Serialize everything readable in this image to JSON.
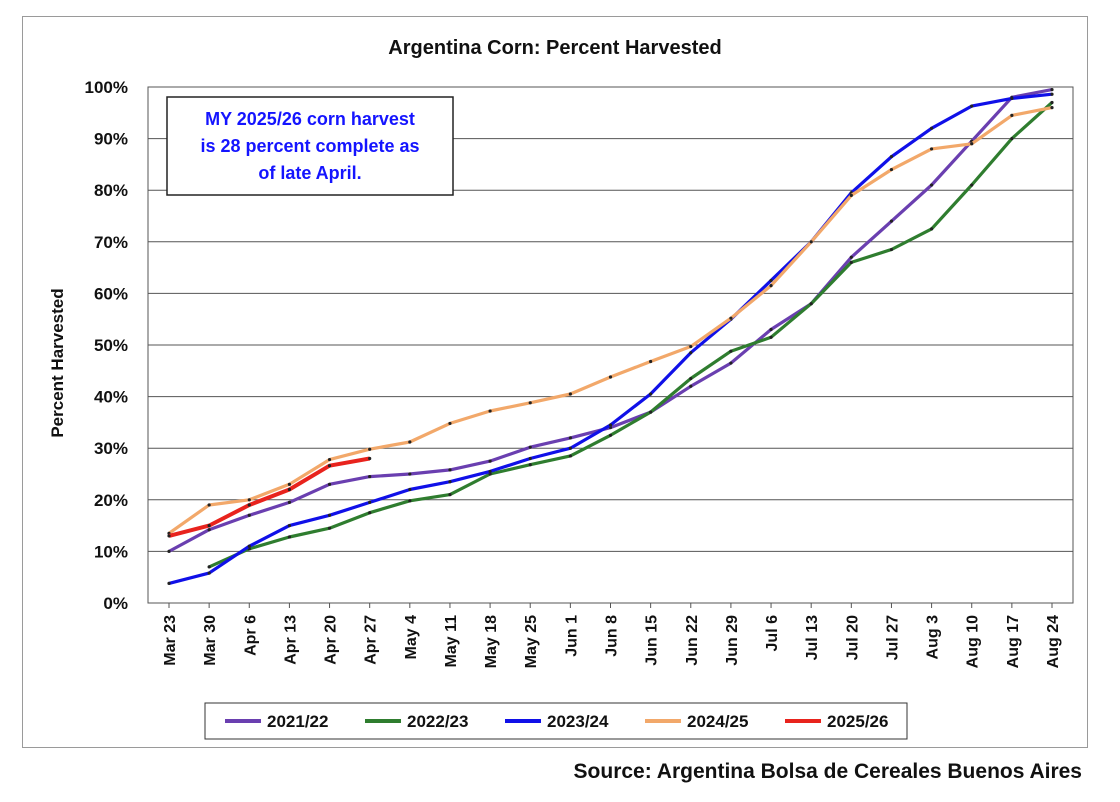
{
  "source_note": "Source: Argentina Bolsa de Cereales Buenos Aires",
  "chart_data": {
    "type": "line",
    "title": "Argentina Corn: Percent Harvested",
    "ylabel": "Percent Harvested",
    "xlabel": "",
    "ylim": [
      0,
      100
    ],
    "yticks": [
      "0%",
      "10%",
      "20%",
      "30%",
      "40%",
      "50%",
      "60%",
      "70%",
      "80%",
      "90%",
      "100%"
    ],
    "grid": true,
    "legend_position": "bottom",
    "annotation": {
      "lines": [
        "MY 2025/26 corn harvest",
        "is 28 percent complete as",
        "of late April."
      ],
      "color": "#1414ff"
    },
    "categories": [
      "Mar 23",
      "Mar 30",
      "Apr 6",
      "Apr 13",
      "Apr 20",
      "Apr 27",
      "May 4",
      "May 11",
      "May 18",
      "May 25",
      "Jun 1",
      "Jun 8",
      "Jun 15",
      "Jun 22",
      "Jun 29",
      "Jul 6",
      "Jul 13",
      "Jul 20",
      "Jul 27",
      "Aug 3",
      "Aug 10",
      "Aug 17",
      "Aug 24"
    ],
    "series": [
      {
        "name": "2021/22",
        "color": "#6a3fb0",
        "values": [
          10,
          14.2,
          17,
          19.5,
          23,
          24.5,
          25,
          25.8,
          27.5,
          30.2,
          32,
          34,
          37,
          42,
          46.5,
          53,
          58,
          67,
          74,
          81,
          89.5,
          98,
          99.5
        ]
      },
      {
        "name": "2022/23",
        "color": "#2f7d2f",
        "values": [
          null,
          7,
          10.5,
          12.8,
          14.5,
          17.5,
          19.8,
          21,
          25,
          26.8,
          28.5,
          32.5,
          37,
          43.5,
          48.8,
          51.5,
          58,
          66,
          68.5,
          72.5,
          81,
          90,
          97
        ]
      },
      {
        "name": "2023/24",
        "color": "#1010e8",
        "values": [
          3.8,
          5.8,
          11,
          15,
          17,
          19.5,
          22,
          23.5,
          25.5,
          28,
          30,
          34.5,
          40.5,
          48.5,
          55,
          62.5,
          70,
          79.5,
          86.5,
          92,
          96.3,
          97.8,
          98.6
        ]
      },
      {
        "name": "2024/25",
        "color": "#f2a86a",
        "values": [
          13.5,
          19,
          20,
          23,
          27.8,
          29.8,
          31.2,
          34.8,
          37.2,
          38.8,
          40.5,
          43.8,
          46.8,
          49.7,
          55.2,
          61.5,
          70,
          79,
          84,
          88,
          89,
          94.5,
          96
        ]
      },
      {
        "name": "2025/26",
        "color": "#e8231d",
        "values": [
          13,
          15,
          19,
          22,
          26.6,
          28,
          null,
          null,
          null,
          null,
          null,
          null,
          null,
          null,
          null,
          null,
          null,
          null,
          null,
          null,
          null,
          null,
          null
        ]
      }
    ]
  }
}
